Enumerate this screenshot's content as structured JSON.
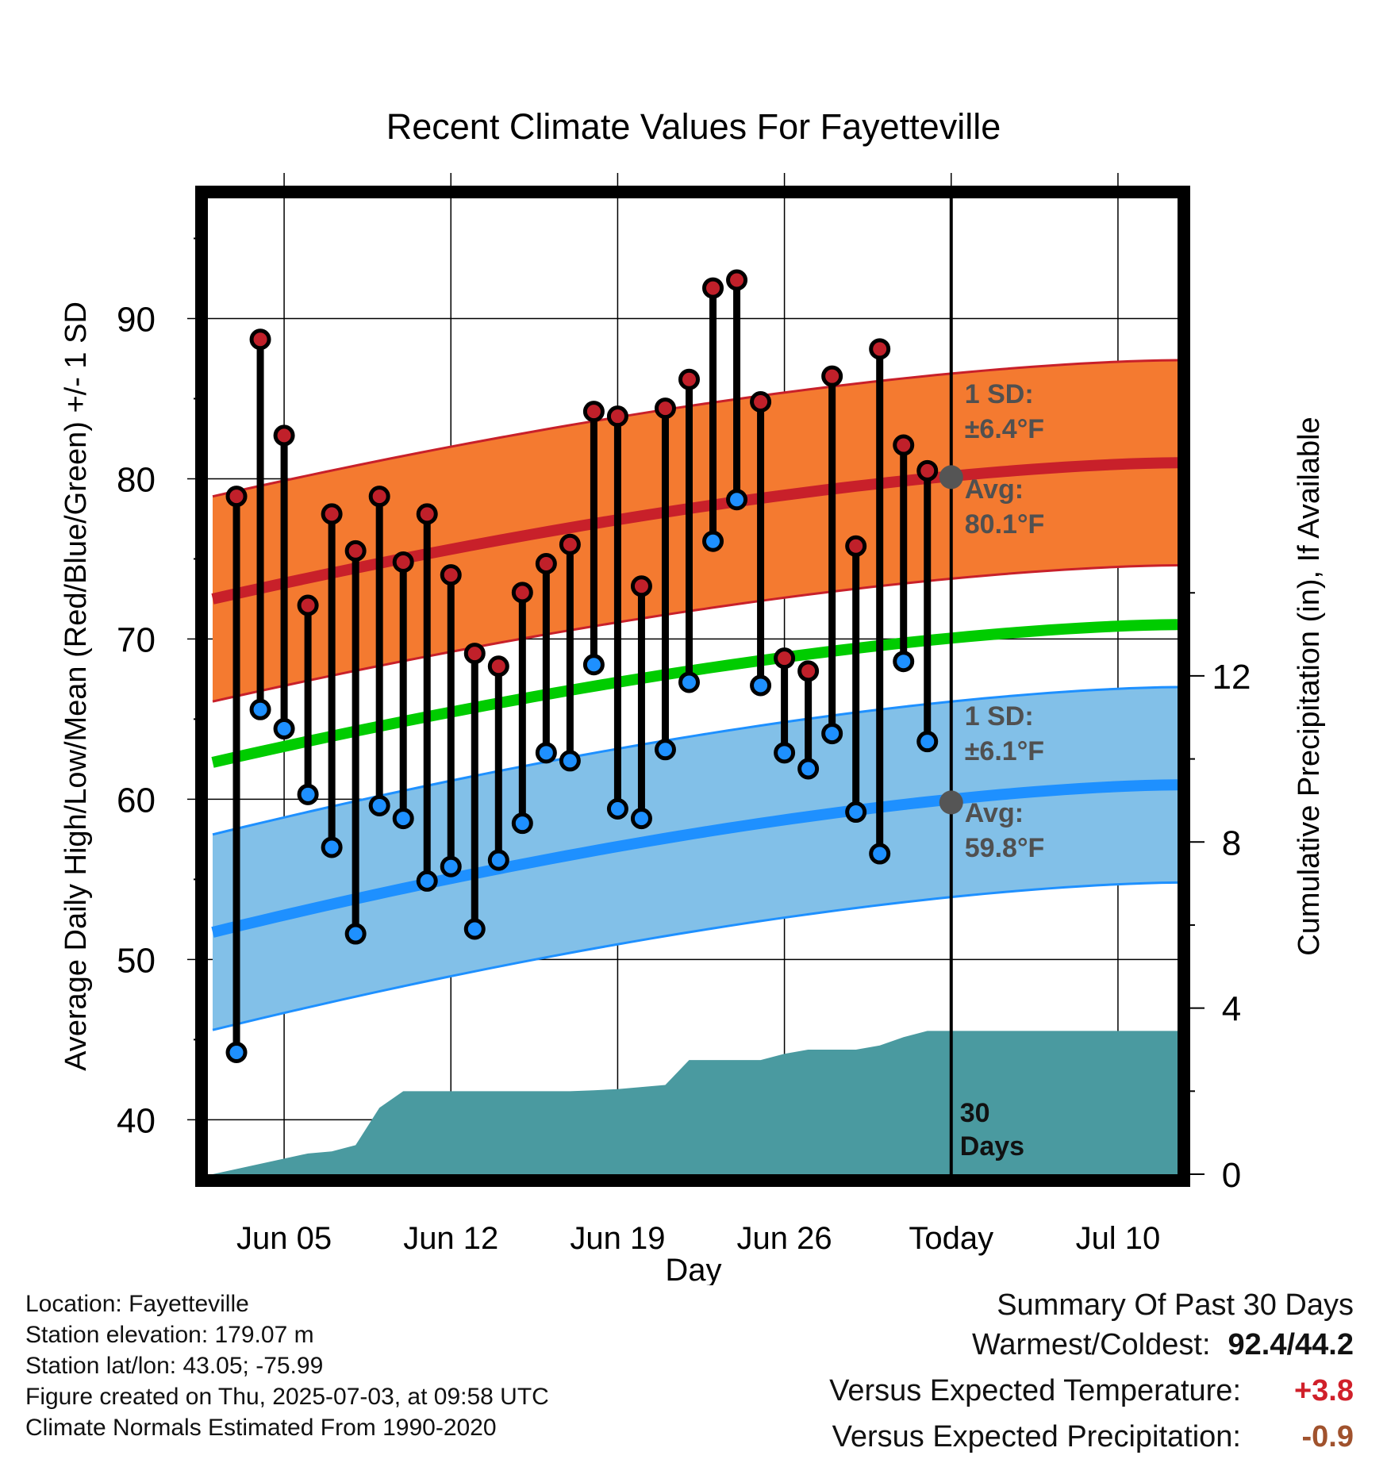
{
  "chart_data": {
    "type": "line",
    "title": "Recent Climate Values For Fayetteville",
    "xlabel": "Day",
    "ylabel_left": "Average Daily High/Low/Mean (Red/Blue/Green) +/- 1 SD",
    "ylabel_right": "Cumulative Precipitation (in), If Available",
    "x_ticks": [
      "Jun 05",
      "Jun 12",
      "Jun 19",
      "Jun 26",
      "Today",
      "Jul 10"
    ],
    "x_tick_days": [
      5,
      12,
      19,
      26,
      33,
      40
    ],
    "xlim": [
      1.8,
      42.5
    ],
    "ylim_left": [
      36.6,
      97.5
    ],
    "yticks_left": [
      40,
      50,
      60,
      70,
      80,
      90
    ],
    "ylim_right": [
      0,
      23.5
    ],
    "yticks_right": [
      0,
      4,
      8,
      12
    ],
    "today_day": 33,
    "days": [
      3,
      4,
      5,
      6,
      7,
      8,
      9,
      10,
      11,
      12,
      13,
      14,
      15,
      16,
      17,
      18,
      19,
      20,
      21,
      22,
      23,
      24,
      25,
      26,
      27,
      28,
      29,
      30,
      31,
      32
    ],
    "series": [
      {
        "name": "High",
        "color": "#c0202a",
        "values": [
          78.9,
          88.7,
          82.7,
          72.1,
          77.8,
          75.5,
          78.9,
          74.8,
          77.8,
          74.0,
          69.1,
          68.3,
          72.9,
          74.7,
          75.9,
          84.2,
          83.9,
          73.3,
          84.4,
          86.2,
          91.9,
          92.4,
          84.8,
          68.8,
          68.0,
          86.4,
          75.8,
          88.1,
          82.1,
          80.5
        ]
      },
      {
        "name": "Low",
        "color": "#1e90ff",
        "values": [
          44.2,
          65.6,
          64.4,
          60.3,
          57.0,
          51.6,
          59.6,
          58.8,
          54.9,
          55.8,
          51.9,
          56.2,
          58.5,
          62.9,
          62.4,
          68.4,
          59.4,
          58.8,
          63.1,
          67.3,
          76.1,
          78.7,
          67.1,
          62.9,
          61.9,
          64.1,
          59.2,
          56.6,
          68.6,
          63.6
        ]
      }
    ],
    "normals": {
      "day_range": [
        2,
        42.5
      ],
      "high_avg": [
        72.5,
        81.0
      ],
      "high_sd": 6.4,
      "low_avg": [
        51.7,
        60.9
      ],
      "low_sd": 6.1,
      "mean_avg": [
        62.3,
        70.9
      ]
    },
    "precip_cumulative": {
      "days": [
        2,
        6,
        7,
        8,
        9,
        10,
        11,
        12,
        13,
        14,
        15,
        16,
        17,
        18,
        19,
        20,
        21,
        22,
        23,
        24,
        25,
        26,
        27,
        28,
        29,
        30,
        31,
        32,
        42.5
      ],
      "values": [
        0,
        0.5,
        0.55,
        0.7,
        1.6,
        2.0,
        2.0,
        2.0,
        2.0,
        2.0,
        2.0,
        2.0,
        2.0,
        2.02,
        2.05,
        2.1,
        2.15,
        2.75,
        2.75,
        2.75,
        2.75,
        2.9,
        3.0,
        3.0,
        3.0,
        3.1,
        3.3,
        3.45,
        3.45
      ]
    },
    "annotations": {
      "high_sd_label": "1 SD:",
      "high_sd_value": "±6.4°F",
      "high_avg_label": "Avg:",
      "high_avg_value": "80.1°F",
      "high_avg_today": 80.1,
      "low_sd_label": "1 SD:",
      "low_sd_value": "±6.1°F",
      "low_avg_label": "Avg:",
      "low_avg_value": "59.8°F",
      "low_avg_today": 59.8,
      "window_line1": "30",
      "window_line2": "Days"
    },
    "colors": {
      "high_band": "#f47a30",
      "high_line": "#c8202a",
      "low_band": "#82c0e8",
      "low_line": "#1e90ff",
      "mean_line": "#00cc00",
      "precip": "#4a9aa0",
      "annotation": "#505050"
    }
  },
  "footer": {
    "location": "Location: Fayetteville",
    "elevation": "Station elevation: 179.07 m",
    "latlon": "Station lat/lon: 43.05; -75.99",
    "created": "Figure created on Thu, 2025-07-03, at 09:58 UTC",
    "normals": "Climate Normals Estimated From 1990-2020"
  },
  "summary": {
    "heading": "Summary Of Past 30 Days",
    "warmest_coldest_label": "Warmest/Coldest:",
    "warmest_coldest_value": "92.4/44.2",
    "temp_label": "Versus Expected Temperature:",
    "temp_value": "+3.8",
    "temp_color": "#d0202a",
    "precip_label": "Versus Expected Precipitation:",
    "precip_value": "-0.9",
    "precip_color": "#a0522d"
  }
}
